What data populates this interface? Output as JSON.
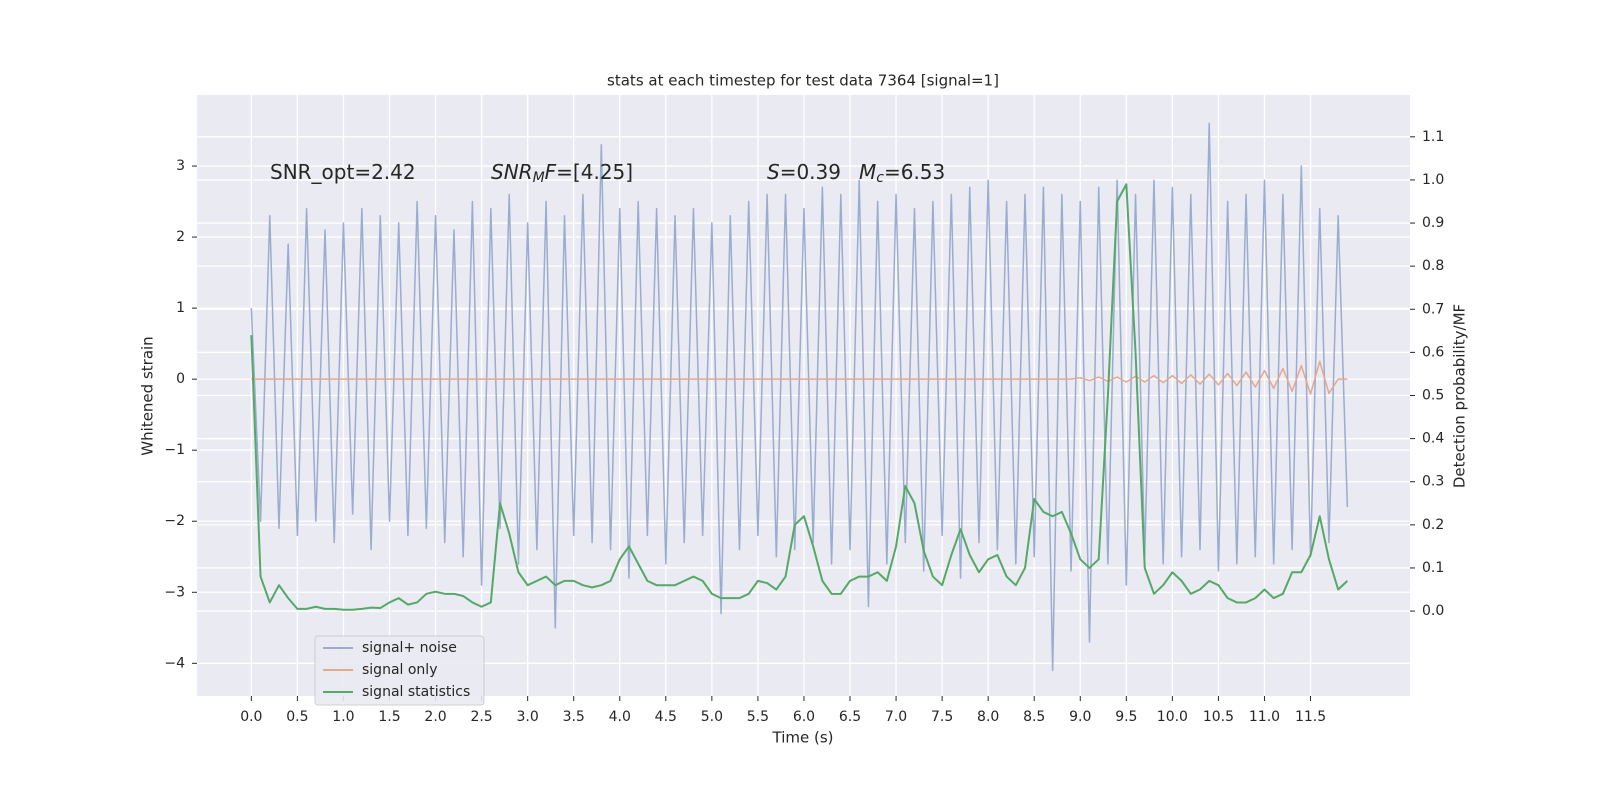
{
  "chart_data": {
    "type": "line",
    "title": "stats at each timestep for test data 7364 [signal=1]",
    "xlabel": "Time (s)",
    "ylabel": "Whitened strain",
    "y2label": "Detection probability/MF",
    "annotations": [
      [
        "SNR_opt=2.42"
      ],
      [
        "SNR",
        "M",
        "F",
        "=[4.25]"
      ],
      [
        "S",
        "=0.39"
      ],
      [
        "M",
        "c",
        "=6.53"
      ]
    ],
    "x": [
      0,
      0.1,
      0.2,
      0.3,
      0.4,
      0.5,
      0.6,
      0.7,
      0.8,
      0.9,
      1.0,
      1.1,
      1.2,
      1.3,
      1.4,
      1.5,
      1.6,
      1.7,
      1.8,
      1.9,
      2.0,
      2.1,
      2.2,
      2.3,
      2.4,
      2.5,
      2.6,
      2.7,
      2.8,
      2.9,
      3.0,
      3.1,
      3.2,
      3.3,
      3.4,
      3.5,
      3.6,
      3.7,
      3.8,
      3.9,
      4.0,
      4.1,
      4.2,
      4.3,
      4.4,
      4.5,
      4.6,
      4.7,
      4.8,
      4.9,
      5.0,
      5.1,
      5.2,
      5.3,
      5.4,
      5.5,
      5.6,
      5.7,
      5.8,
      5.9,
      6.0,
      6.1,
      6.2,
      6.3,
      6.4,
      6.5,
      6.6,
      6.7,
      6.8,
      6.9,
      7.0,
      7.1,
      7.2,
      7.3,
      7.4,
      7.5,
      7.6,
      7.7,
      7.8,
      7.9,
      8.0,
      8.1,
      8.2,
      8.3,
      8.4,
      8.5,
      8.6,
      8.7,
      8.8,
      8.9,
      9.0,
      9.1,
      9.2,
      9.3,
      9.4,
      9.5,
      9.6,
      9.7,
      9.8,
      9.9,
      10.0,
      10.1,
      10.2,
      10.3,
      10.4,
      10.5,
      10.6,
      10.7,
      10.8,
      10.9,
      11.0,
      11.1,
      11.2,
      11.3,
      11.4,
      11.5,
      11.6,
      11.7,
      11.8,
      11.9
    ],
    "series": [
      {
        "name": "signal+ noise",
        "color": "#9aaccf",
        "values": [
          1.0,
          -2.0,
          2.3,
          -2.1,
          1.9,
          -2.2,
          2.4,
          -2.0,
          2.1,
          -2.3,
          2.2,
          -1.9,
          2.4,
          -2.4,
          2.3,
          -2.0,
          2.2,
          -2.2,
          2.5,
          -2.1,
          2.3,
          -2.3,
          2.1,
          -2.5,
          2.5,
          -2.9,
          2.4,
          -2.1,
          2.6,
          -2.6,
          2.2,
          -2.4,
          2.5,
          -3.5,
          2.3,
          -2.2,
          2.6,
          -2.3,
          3.3,
          -2.4,
          2.4,
          -2.8,
          2.5,
          -2.2,
          2.4,
          -2.6,
          2.3,
          -2.3,
          2.4,
          -2.2,
          2.2,
          -3.3,
          2.3,
          -2.4,
          2.5,
          -2.2,
          2.6,
          -2.5,
          2.6,
          -2.4,
          2.4,
          -2.3,
          2.7,
          -2.6,
          2.6,
          -2.4,
          2.8,
          -3.2,
          2.5,
          -2.6,
          2.6,
          -2.3,
          2.4,
          -2.7,
          2.5,
          -2.2,
          2.6,
          -2.8,
          2.7,
          -2.3,
          2.8,
          -2.4,
          2.5,
          -2.6,
          2.6,
          -2.5,
          2.7,
          -4.1,
          2.6,
          -2.7,
          2.5,
          -3.7,
          2.7,
          -2.6,
          2.8,
          -2.9,
          2.6,
          -2.5,
          2.8,
          -2.6,
          2.7,
          -2.5,
          2.6,
          -2.4,
          3.6,
          -2.7,
          2.5,
          -2.6,
          2.6,
          -2.5,
          2.8,
          -2.6,
          2.6,
          -2.4,
          3.0,
          -2.5,
          2.4,
          -2.3,
          2.3,
          -1.8
        ]
      },
      {
        "name": "signal only",
        "color": "#e3a98f",
        "values": [
          0,
          0,
          0,
          0,
          0,
          0,
          0,
          0,
          0,
          0,
          0,
          0,
          0,
          0,
          0,
          0,
          0,
          0,
          0,
          0,
          0,
          0,
          0,
          0,
          0,
          0,
          0,
          0,
          0,
          0,
          0,
          0,
          0,
          0,
          0,
          0,
          0,
          0,
          0,
          0,
          0,
          0,
          0,
          0,
          0,
          0,
          0,
          0,
          0,
          0,
          0,
          0,
          0,
          0,
          0,
          0,
          0,
          0,
          0,
          0,
          0,
          0,
          0,
          0,
          0,
          0,
          0,
          0,
          0,
          0,
          0,
          0,
          0,
          0,
          0,
          0,
          0,
          0,
          0,
          0,
          0,
          0,
          0,
          0,
          0,
          0,
          0,
          0,
          0,
          0,
          0.02,
          -0.02,
          0.03,
          -0.03,
          0.03,
          -0.04,
          0.04,
          -0.04,
          0.05,
          -0.05,
          0.05,
          -0.06,
          0.06,
          -0.07,
          0.07,
          -0.08,
          0.08,
          -0.09,
          0.1,
          -0.11,
          0.12,
          -0.13,
          0.15,
          -0.17,
          0.19,
          -0.21,
          0.25,
          -0.2,
          0,
          0
        ]
      },
      {
        "name": "signal statistics",
        "color": "#55a868",
        "axis": "y2",
        "values": [
          0.64,
          0.08,
          0.02,
          0.06,
          0.03,
          0.005,
          0.005,
          0.01,
          0.005,
          0.005,
          0.003,
          0.003,
          0.005,
          0.008,
          0.007,
          0.02,
          0.03,
          0.015,
          0.02,
          0.04,
          0.045,
          0.04,
          0.04,
          0.035,
          0.02,
          0.01,
          0.02,
          0.25,
          0.18,
          0.09,
          0.06,
          0.07,
          0.08,
          0.06,
          0.07,
          0.07,
          0.06,
          0.055,
          0.06,
          0.07,
          0.12,
          0.15,
          0.11,
          0.07,
          0.06,
          0.06,
          0.06,
          0.07,
          0.08,
          0.07,
          0.04,
          0.03,
          0.03,
          0.03,
          0.04,
          0.07,
          0.065,
          0.05,
          0.08,
          0.2,
          0.22,
          0.15,
          0.07,
          0.04,
          0.04,
          0.07,
          0.08,
          0.08,
          0.09,
          0.07,
          0.15,
          0.29,
          0.25,
          0.14,
          0.08,
          0.06,
          0.13,
          0.19,
          0.13,
          0.09,
          0.12,
          0.13,
          0.08,
          0.06,
          0.1,
          0.26,
          0.23,
          0.22,
          0.23,
          0.18,
          0.12,
          0.1,
          0.12,
          0.5,
          0.95,
          0.99,
          0.6,
          0.1,
          0.04,
          0.06,
          0.09,
          0.07,
          0.04,
          0.05,
          0.07,
          0.06,
          0.03,
          0.02,
          0.02,
          0.03,
          0.05,
          0.03,
          0.04,
          0.09,
          0.09,
          0.13,
          0.22,
          0.12,
          0.05,
          0.07
        ]
      }
    ],
    "xlim": [
      -0.59,
      12.58
    ],
    "ylim": [
      -4.46,
      4.0
    ],
    "y2lim": [
      -0.197,
      1.197
    ],
    "xticks": [
      {
        "value": 0,
        "label": "0.0"
      },
      0.5,
      {
        "value": 1,
        "label": "1.0"
      },
      1.5,
      {
        "value": 2,
        "label": "2.0"
      },
      2.5,
      {
        "value": 3,
        "label": "3.0"
      },
      3.5,
      {
        "value": 4,
        "label": "4.0"
      },
      4.5,
      {
        "value": 5,
        "label": "5.0"
      },
      5.5,
      {
        "value": 6,
        "label": "6.0"
      },
      6.5,
      {
        "value": 7,
        "label": "7.0"
      },
      7.5,
      {
        "value": 8,
        "label": "8.0"
      },
      8.5,
      {
        "value": 9,
        "label": "9.0"
      },
      9.5,
      {
        "value": 10,
        "label": "10.0"
      },
      10.5,
      {
        "value": 11,
        "label": "11.0"
      },
      11.5
    ],
    "yticks": [
      {
        "value": -4,
        "label": "−4"
      },
      {
        "value": -3,
        "label": "−3"
      },
      {
        "value": -2,
        "label": "−2"
      },
      {
        "value": -1,
        "label": "−1"
      },
      0,
      1,
      2,
      3
    ],
    "y2ticks": [
      {
        "value": 0,
        "label": "0.0"
      },
      0.1,
      0.2,
      0.3,
      0.4,
      0.5,
      0.6,
      0.7,
      0.8,
      0.9,
      {
        "value": 1,
        "label": "1.0"
      },
      1.1
    ],
    "grid": true,
    "legend": "lower left"
  }
}
